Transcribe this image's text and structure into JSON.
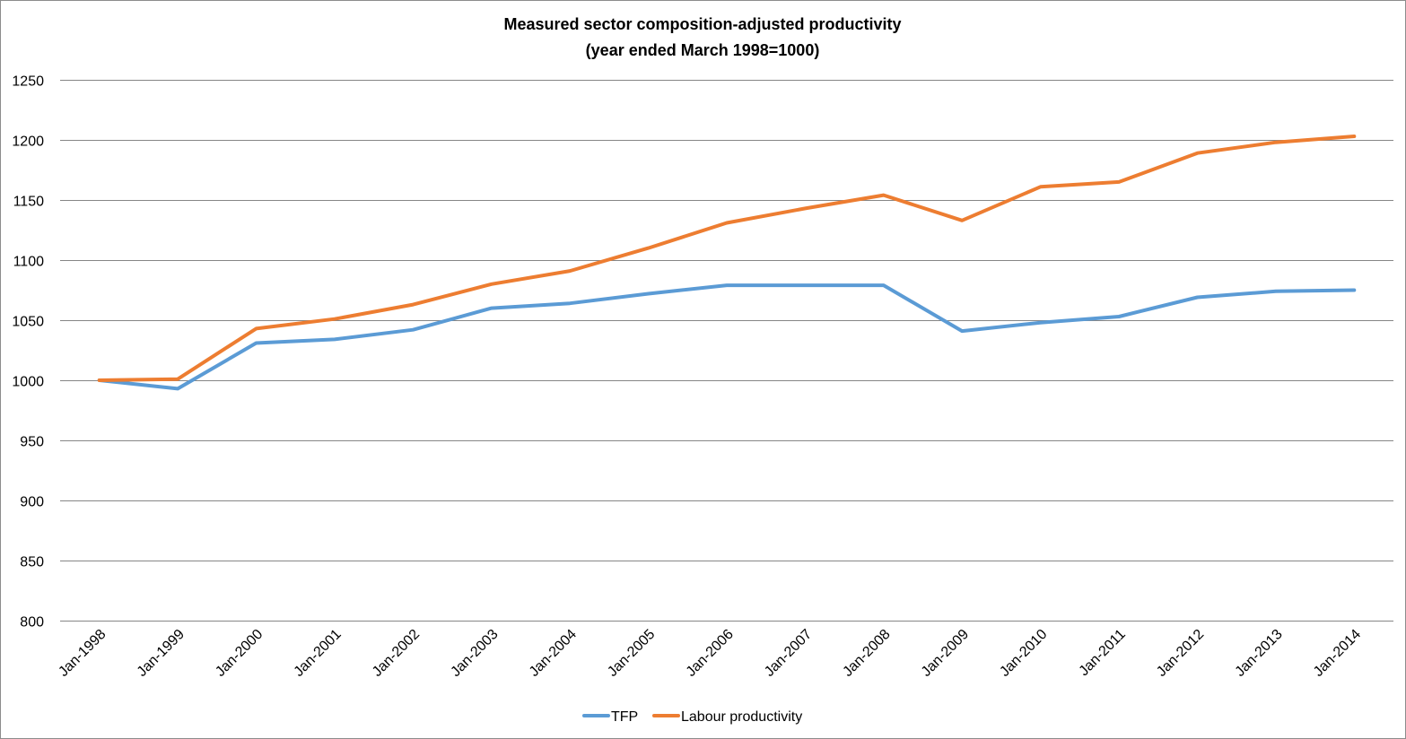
{
  "chart_data": {
    "type": "line",
    "title": "Measured sector composition-adjusted productivity",
    "subtitle": "(year ended March 1998=1000)",
    "xlabel": "",
    "ylabel": "",
    "ylim": [
      800,
      1250
    ],
    "yticks": [
      800,
      850,
      900,
      950,
      1000,
      1050,
      1100,
      1150,
      1200,
      1250
    ],
    "grid": true,
    "legend_position": "bottom",
    "categories": [
      "Jan-1998",
      "Jan-1999",
      "Jan-2000",
      "Jan-2001",
      "Jan-2002",
      "Jan-2003",
      "Jan-2004",
      "Jan-2005",
      "Jan-2006",
      "Jan-2007",
      "Jan-2008",
      "Jan-2009",
      "Jan-2010",
      "Jan-2011",
      "Jan-2012",
      "Jan-2013",
      "Jan-2014"
    ],
    "series": [
      {
        "name": "TFP",
        "color": "#5b9bd5",
        "values": [
          1000,
          993,
          1031,
          1034,
          1042,
          1060,
          1064,
          1072,
          1079,
          1079,
          1079,
          1041,
          1048,
          1053,
          1069,
          1074,
          1075
        ]
      },
      {
        "name": "Labour productivity",
        "color": "#ed7d31",
        "values": [
          1000,
          1001,
          1043,
          1051,
          1063,
          1080,
          1091,
          1110,
          1131,
          1143,
          1154,
          1133,
          1161,
          1165,
          1189,
          1198,
          1203
        ]
      }
    ]
  }
}
